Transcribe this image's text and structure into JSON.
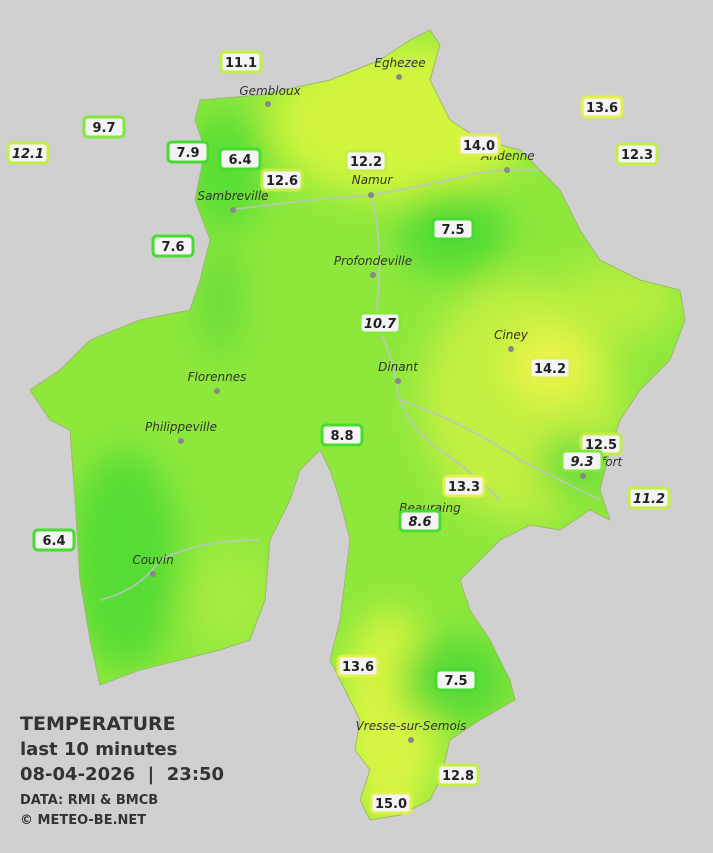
{
  "legend": {
    "title": "TEMPERATURE",
    "period": "last 10 minutes",
    "timestamp": "08-04-2026  |  23:50",
    "source": "DATA: RMI & BMCB",
    "credit": "© METEO-BE.NET"
  },
  "cities": [
    "Eghezee",
    "Gembloux",
    "Andenne",
    "Namur",
    "Sambreville",
    "Profondeville",
    "Ciney",
    "Dinant",
    "Florennes",
    "Philippeville",
    "Couvin",
    "Beauraing",
    "Rochefort",
    "Vresse-sur-Semois"
  ],
  "stations": [
    {
      "value": "11.1",
      "italic": false
    },
    {
      "value": "9.7",
      "italic": false
    },
    {
      "value": "12.1",
      "italic": true
    },
    {
      "value": "7.9",
      "italic": false
    },
    {
      "value": "6.4",
      "italic": false
    },
    {
      "value": "12.6",
      "italic": false
    },
    {
      "value": "12.2",
      "italic": false
    },
    {
      "value": "14.0",
      "italic": false
    },
    {
      "value": "13.6",
      "italic": false
    },
    {
      "value": "12.3",
      "italic": false
    },
    {
      "value": "7.5",
      "italic": false
    },
    {
      "value": "7.6",
      "italic": false
    },
    {
      "value": "10.7",
      "italic": true
    },
    {
      "value": "14.2",
      "italic": false
    },
    {
      "value": "8.8",
      "italic": false
    },
    {
      "value": "12.5",
      "italic": false
    },
    {
      "value": "9.3",
      "italic": true
    },
    {
      "value": "13.3",
      "italic": false
    },
    {
      "value": "11.2",
      "italic": true
    },
    {
      "value": "8.6",
      "italic": true
    },
    {
      "value": "6.4",
      "italic": false
    },
    {
      "value": "13.6",
      "italic": false
    },
    {
      "value": "7.5",
      "italic": false
    },
    {
      "value": "12.8",
      "italic": false
    },
    {
      "value": "15.0",
      "italic": false
    }
  ]
}
